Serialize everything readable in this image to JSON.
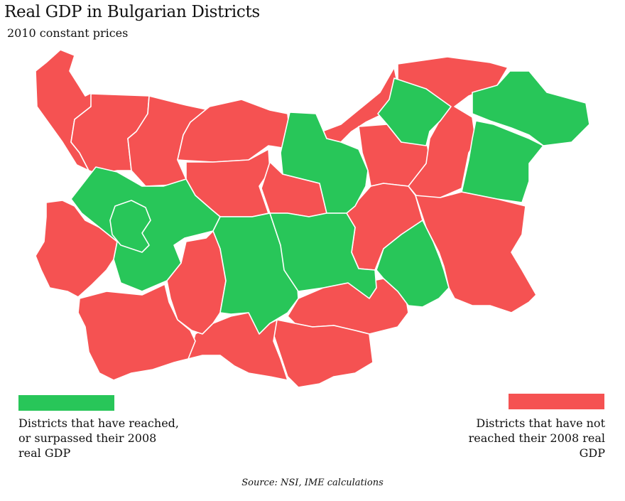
{
  "title": "Real GDP in Bulgarian Districts",
  "subtitle": "2010 constant prices",
  "colors": {
    "reached": "#28c659",
    "not_reached": "#f55252"
  },
  "legend": {
    "reached": {
      "label_lines": [
        "Districts that have reached,",
        "or surpassed their 2008",
        "real GDP"
      ]
    },
    "not_reached": {
      "label_lines": [
        "Districts that have not",
        "reached their 2008 real",
        "GDP"
      ]
    }
  },
  "source": "Source: NSI, IME calculations"
}
